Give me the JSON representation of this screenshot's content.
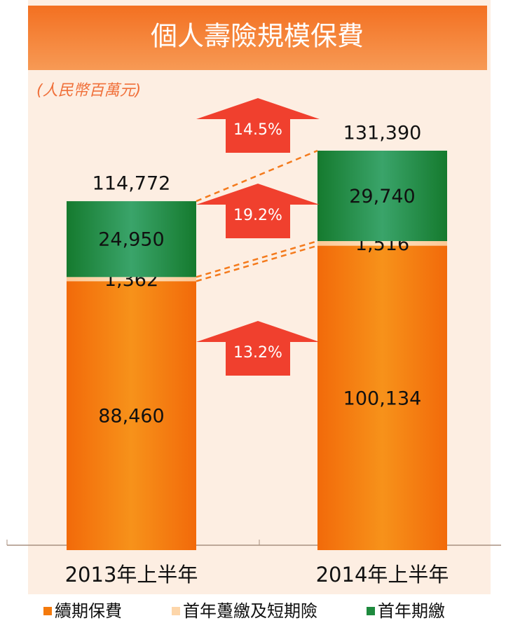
{
  "chart_data": {
    "type": "stacked-bar",
    "title": "個人壽險規模保費",
    "unit": "(人民幣百萬元)",
    "categories": [
      "2013年上半年",
      "2014年上半年"
    ],
    "series": [
      {
        "name": "續期保費",
        "color": "#f47a0c",
        "values": [
          88460,
          100134
        ],
        "value_labels": [
          "88,460",
          "100,134"
        ]
      },
      {
        "name": "首年躉繳及短期險",
        "color": "#fdd6aa",
        "values": [
          1362,
          1516
        ],
        "value_labels": [
          "1,362",
          "1,516"
        ]
      },
      {
        "name": "首年期繳",
        "color": "#1e8a3e",
        "values": [
          24950,
          29740
        ],
        "value_labels": [
          "24,950",
          "29,740"
        ]
      }
    ],
    "totals": {
      "values": [
        114772,
        131390
      ],
      "value_labels": [
        "114,772",
        "131,390"
      ]
    },
    "growth": [
      {
        "value": 14.5,
        "label": "14.5%"
      },
      {
        "value": 19.2,
        "label": "19.2%"
      },
      {
        "value": 13.2,
        "label": "13.2%"
      }
    ]
  }
}
